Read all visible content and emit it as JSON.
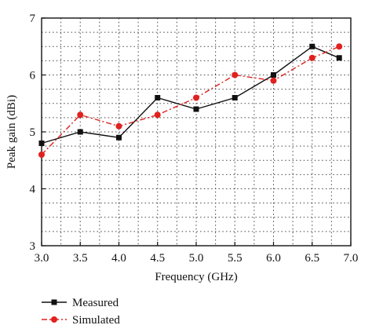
{
  "chart_data": {
    "type": "line",
    "xlabel": "Frequency (GHz)",
    "ylabel": "Peak gain (dBi)",
    "xlim": [
      3.0,
      7.0
    ],
    "ylim": [
      3,
      7
    ],
    "xticks": [
      "3.0",
      "3.5",
      "4.0",
      "4.5",
      "5.0",
      "5.5",
      "6.0",
      "6.5",
      "7.0"
    ],
    "yticks": [
      "3",
      "4",
      "5",
      "6",
      "7"
    ],
    "grid": true,
    "legend_position": "bottom-left",
    "series": [
      {
        "name": "Measured",
        "color": "#111111",
        "marker": "square",
        "line_style": "solid",
        "x": [
          3.0,
          3.5,
          4.0,
          4.5,
          5.0,
          5.5,
          6.0,
          6.5,
          6.85
        ],
        "y": [
          4.8,
          5.0,
          4.9,
          5.6,
          5.4,
          5.6,
          6.0,
          6.5,
          6.3
        ]
      },
      {
        "name": "Simulated",
        "color": "#e0211f",
        "marker": "circle",
        "line_style": "dash-dot",
        "x": [
          3.0,
          3.5,
          4.0,
          4.5,
          5.0,
          5.5,
          6.0,
          6.5,
          6.85
        ],
        "y": [
          4.6,
          5.3,
          5.1,
          5.3,
          5.6,
          6.0,
          5.9,
          6.3,
          6.5
        ]
      }
    ]
  }
}
